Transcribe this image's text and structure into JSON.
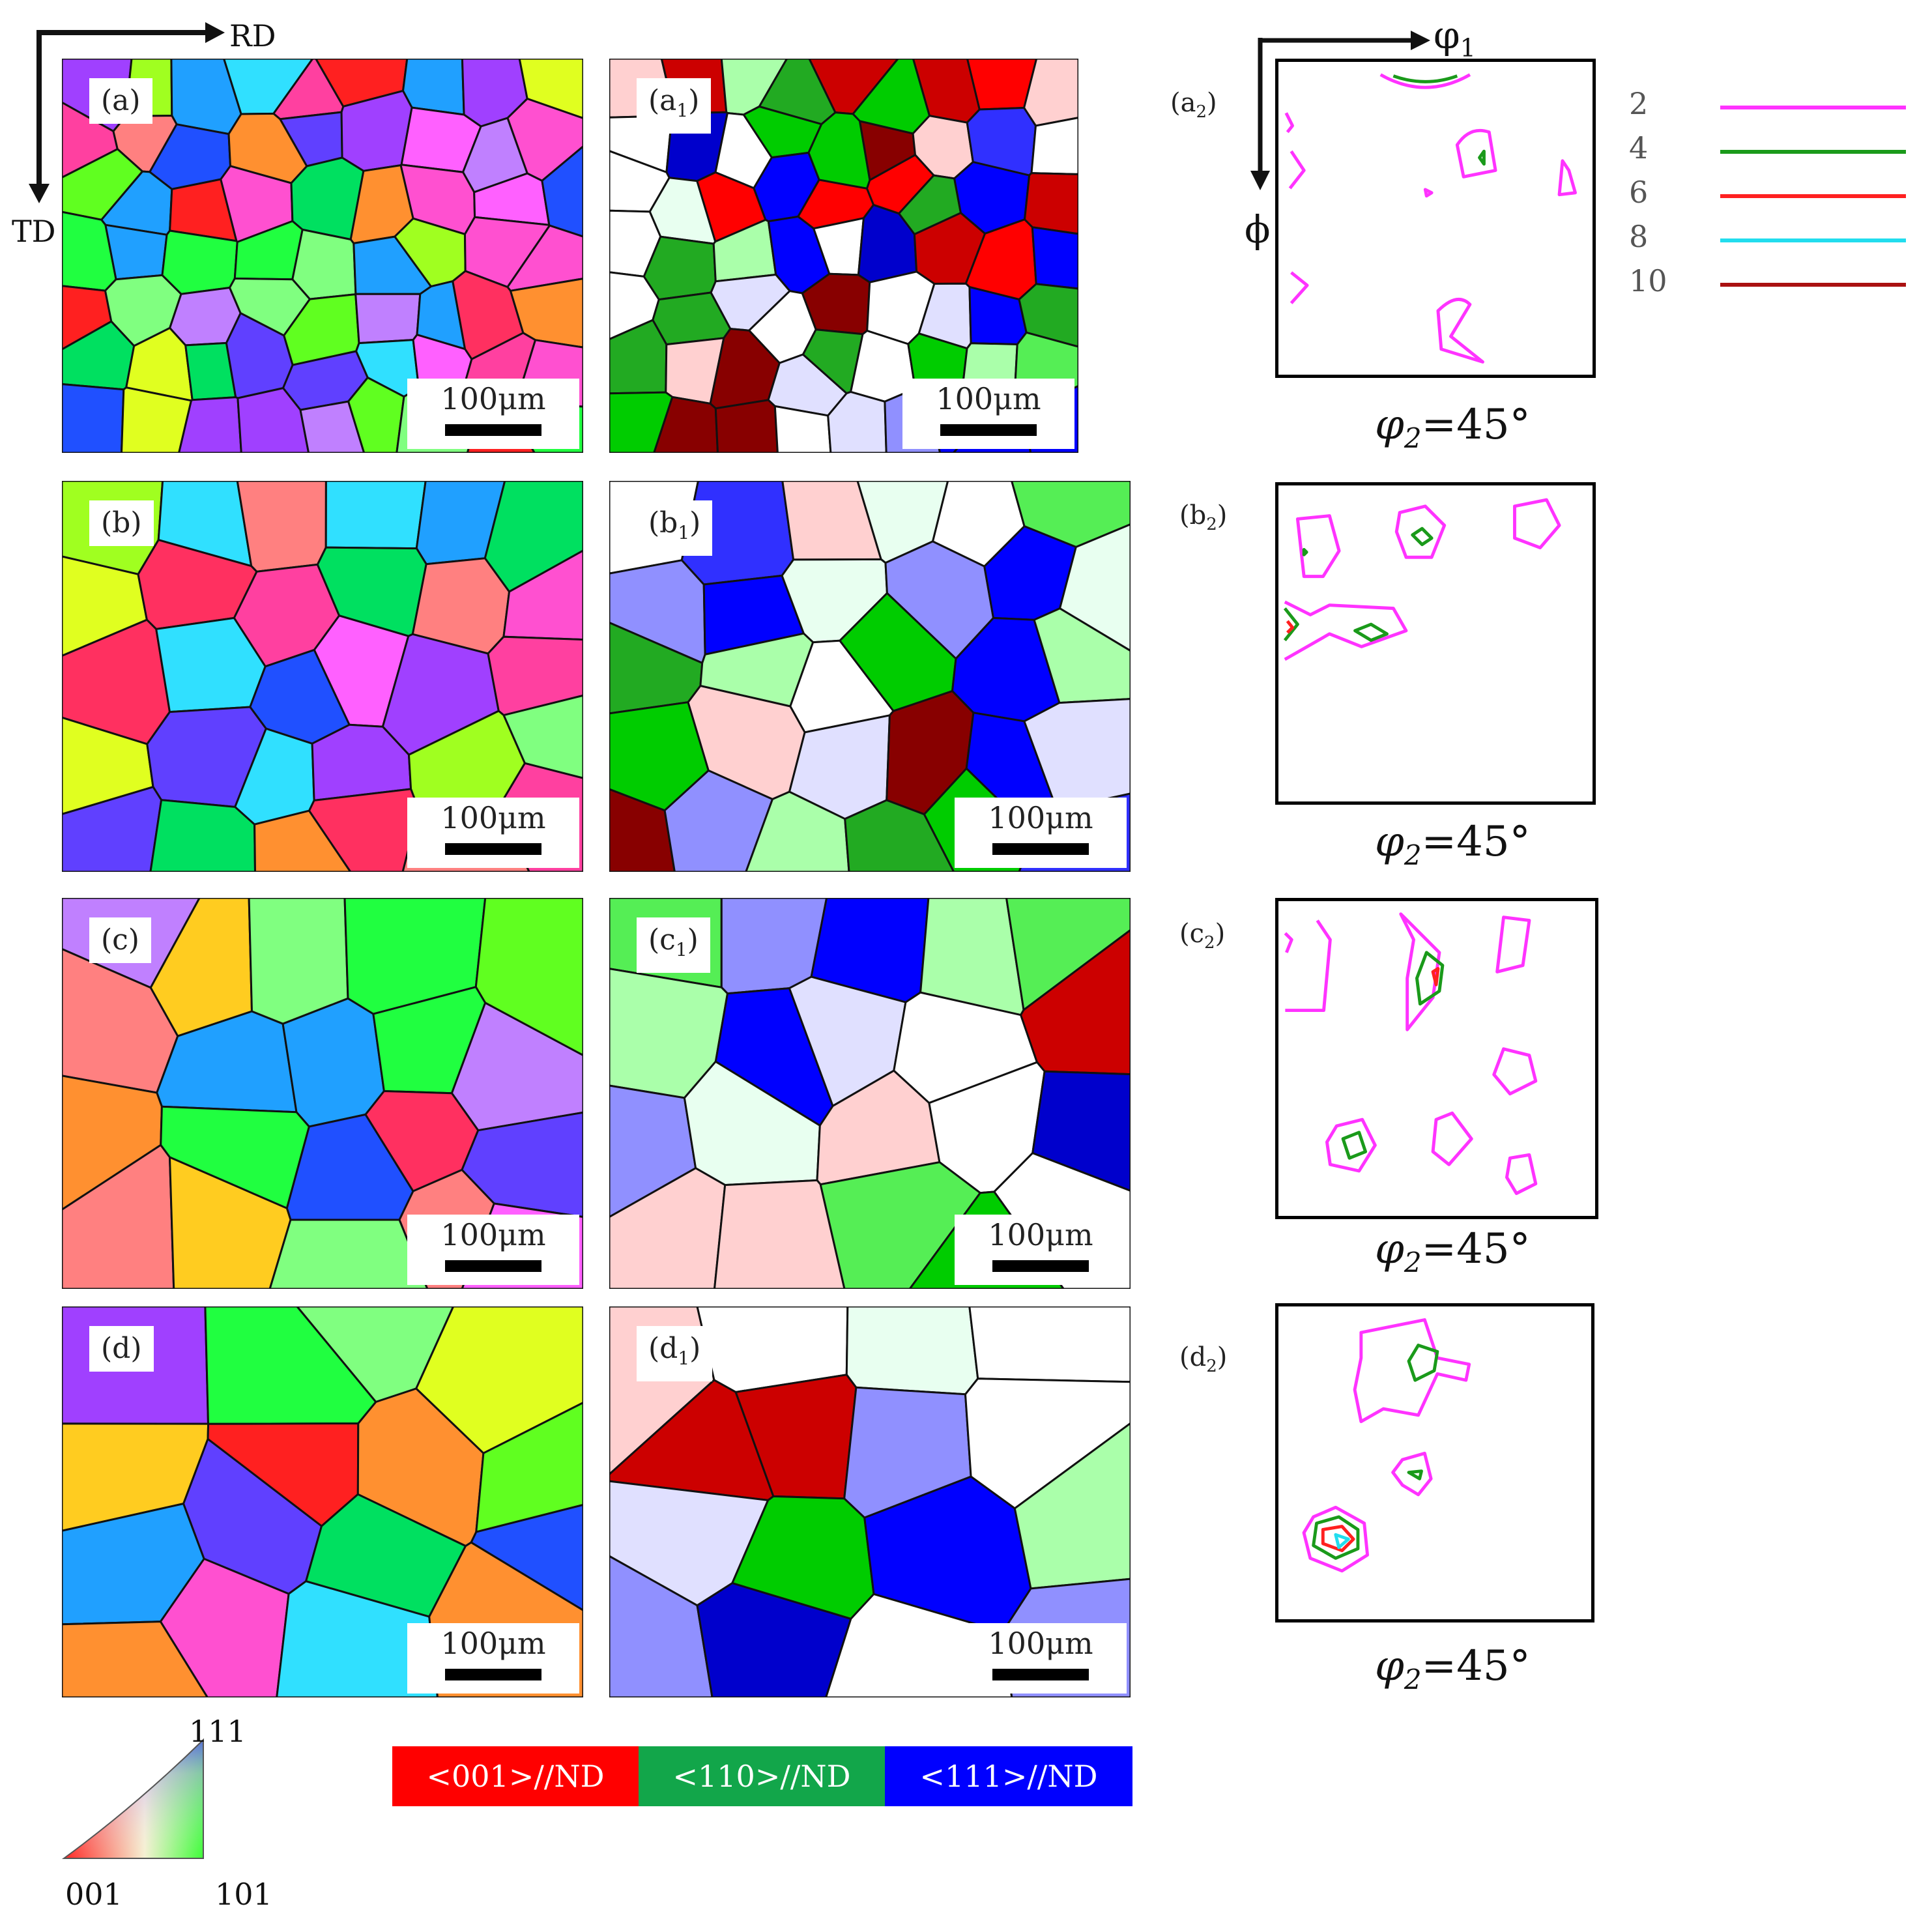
{
  "axes": {
    "rd": "RD",
    "td": "TD",
    "phi1": "φ",
    "phi1_sub": "1",
    "phi": "ϕ"
  },
  "maps": [
    {
      "label": "(a)",
      "scale": "100μm"
    },
    {
      "label": "(a",
      "sub": "1",
      "label_end": ")",
      "scale": "100μm"
    },
    {
      "label": "(b)",
      "scale": "100μm"
    },
    {
      "label": "(b",
      "sub": "1",
      "label_end": ")",
      "scale": "100μm"
    },
    {
      "label": "(c)",
      "scale": "100μm"
    },
    {
      "label": "(c",
      "sub": "1",
      "label_end": ")",
      "scale": "100μm"
    },
    {
      "label": "(d)",
      "scale": "100μm"
    },
    {
      "label": "(d",
      "sub": "1",
      "label_end": ")",
      "scale": "100μm"
    }
  ],
  "odf": [
    {
      "label": "(a",
      "sub": "2",
      "label_end": ")",
      "section": "=45°"
    },
    {
      "label": "(b",
      "sub": "2",
      "label_end": ")",
      "section": "=45°"
    },
    {
      "label": "(c",
      "sub": "2",
      "label_end": ")",
      "section": "=45°"
    },
    {
      "label": "(d",
      "sub": "2",
      "label_end": ")",
      "section": "=45°"
    }
  ],
  "section_symbol": "φ",
  "section_sub": "2",
  "contour_legend": [
    {
      "level": "2",
      "color": "#ff33ff"
    },
    {
      "level": "4",
      "color": "#1a9a1a"
    },
    {
      "level": "6",
      "color": "#ff2020"
    },
    {
      "level": "8",
      "color": "#22ddee"
    },
    {
      "level": "10",
      "color": "#aa1111"
    }
  ],
  "ipf_key": {
    "corner_111": "111",
    "corner_001": "001",
    "corner_101": "101"
  },
  "fiber_legend": [
    {
      "label": "<001>//ND",
      "color": "#ff0000"
    },
    {
      "label": "<110>//ND",
      "color": "#12a64a"
    },
    {
      "label": "<111>//ND",
      "color": "#0000ff"
    }
  ]
}
